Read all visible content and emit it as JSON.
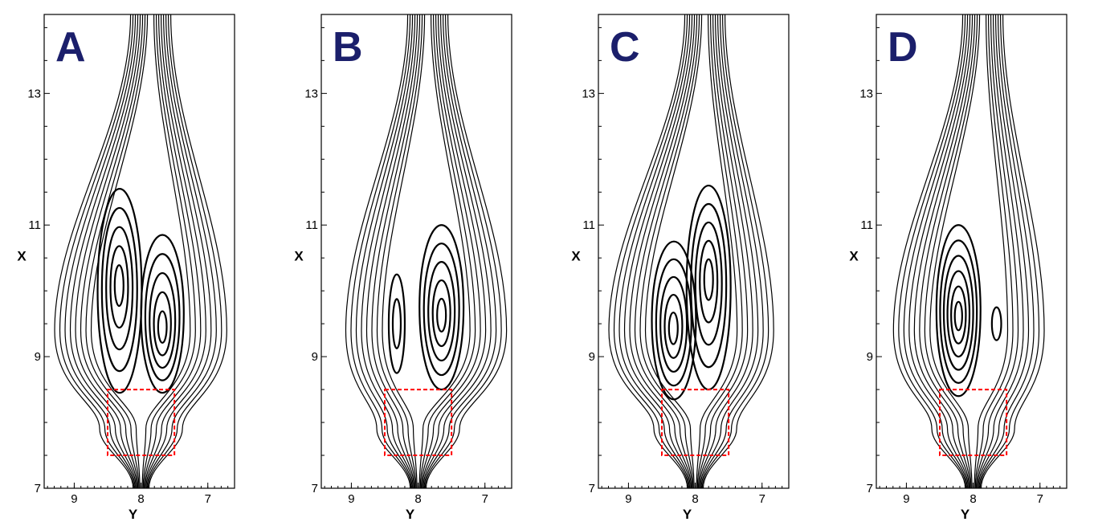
{
  "figure": {
    "x_axis_title": "Y",
    "y_axis_title": "X",
    "y_ticks": [
      {
        "value": 7,
        "label": "7"
      },
      {
        "value": 9,
        "label": "9"
      },
      {
        "value": 11,
        "label": "11"
      },
      {
        "value": 13,
        "label": "13"
      }
    ],
    "x_ticks": [
      {
        "value": 9,
        "label": "9"
      },
      {
        "value": 8,
        "label": "8"
      },
      {
        "value": 7,
        "label": "7"
      }
    ],
    "x_range": [
      9.45,
      6.6
    ],
    "y_range": [
      7.0,
      14.2
    ],
    "dashed_region": {
      "y_from": 8.5,
      "y_to": 7.5,
      "x_from": 7.5,
      "x_to": 8.5
    },
    "colors": {
      "contour": "#000000",
      "dashed_region": "#ff0000",
      "panel_letter": "#1b1f6b"
    }
  },
  "panels": [
    {
      "id": "A",
      "label": "A",
      "vortices": [
        {
          "cy": 8.32,
          "cx": 10.0,
          "ry": 0.33,
          "rx": 1.55,
          "levels": 5,
          "core_y": 8.33,
          "core_x": 10.1
        },
        {
          "cy": 7.68,
          "cx": 9.65,
          "ry": 0.32,
          "rx": 1.2,
          "levels": 5,
          "core_y": 7.68,
          "core_x": 9.4
        }
      ]
    },
    {
      "id": "B",
      "label": "B",
      "vortices": [
        {
          "cy": 8.32,
          "cx": 9.5,
          "ry": 0.12,
          "rx": 0.75,
          "levels": 2,
          "core_y": 8.32,
          "core_x": 9.5
        },
        {
          "cy": 7.65,
          "cx": 9.75,
          "ry": 0.33,
          "rx": 1.25,
          "levels": 5,
          "core_y": 7.65,
          "core_x": 9.6
        }
      ]
    },
    {
      "id": "C",
      "label": "C",
      "vortices": [
        {
          "cy": 8.32,
          "cx": 9.55,
          "ry": 0.33,
          "rx": 1.2,
          "levels": 5,
          "core_y": 8.33,
          "core_x": 9.4
        },
        {
          "cy": 7.8,
          "cx": 10.05,
          "ry": 0.33,
          "rx": 1.55,
          "levels": 5,
          "core_y": 7.8,
          "core_x": 10.2
        }
      ]
    },
    {
      "id": "D",
      "label": "D",
      "vortices": [
        {
          "cy": 8.22,
          "cx": 9.7,
          "ry": 0.33,
          "rx": 1.3,
          "levels": 6,
          "core_y": 8.22,
          "core_x": 9.6
        },
        {
          "cy": 7.65,
          "cx": 9.5,
          "ry": 0.07,
          "rx": 0.25,
          "levels": 1,
          "core_y": 7.65,
          "core_x": 9.5
        }
      ]
    }
  ]
}
